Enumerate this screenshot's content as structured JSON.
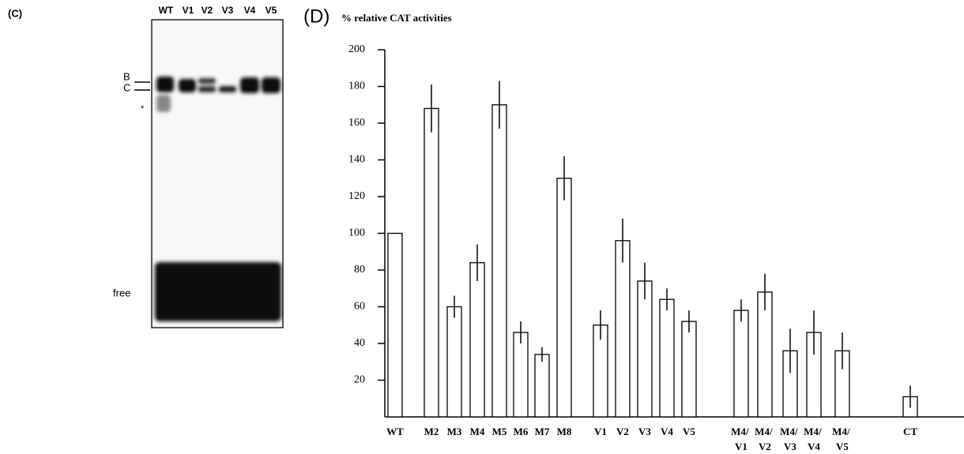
{
  "panel_c": {
    "label": "(C)",
    "lanes": [
      "WT",
      "V1",
      "V2",
      "V3",
      "V4",
      "V5"
    ],
    "bands": [
      "B",
      "C"
    ],
    "marker": "*",
    "free_label": "free"
  },
  "chart_data": {
    "type": "bar",
    "panel_label": "(D)",
    "title": "% relative CAT activities",
    "categories": [
      "WT",
      "M2",
      "M3",
      "M4",
      "M5",
      "M6",
      "M7",
      "M8",
      "V1",
      "V2",
      "V3",
      "V4",
      "V5",
      "M4/ V1",
      "M4/ V2",
      "M4/ V3",
      "M4/ V4",
      "M4/ V5",
      "CT"
    ],
    "values": [
      100,
      168,
      60,
      84,
      170,
      46,
      34,
      130,
      50,
      96,
      74,
      64,
      52,
      58,
      68,
      36,
      46,
      36,
      11
    ],
    "errors": [
      null,
      13,
      6,
      10,
      13,
      6,
      4,
      12,
      8,
      12,
      10,
      6,
      6,
      6,
      10,
      12,
      12,
      10,
      6
    ],
    "color": "#ffffff",
    "ylim": [
      0,
      200
    ],
    "yticks": [
      20,
      40,
      60,
      80,
      100,
      120,
      140,
      160,
      180,
      200
    ]
  }
}
